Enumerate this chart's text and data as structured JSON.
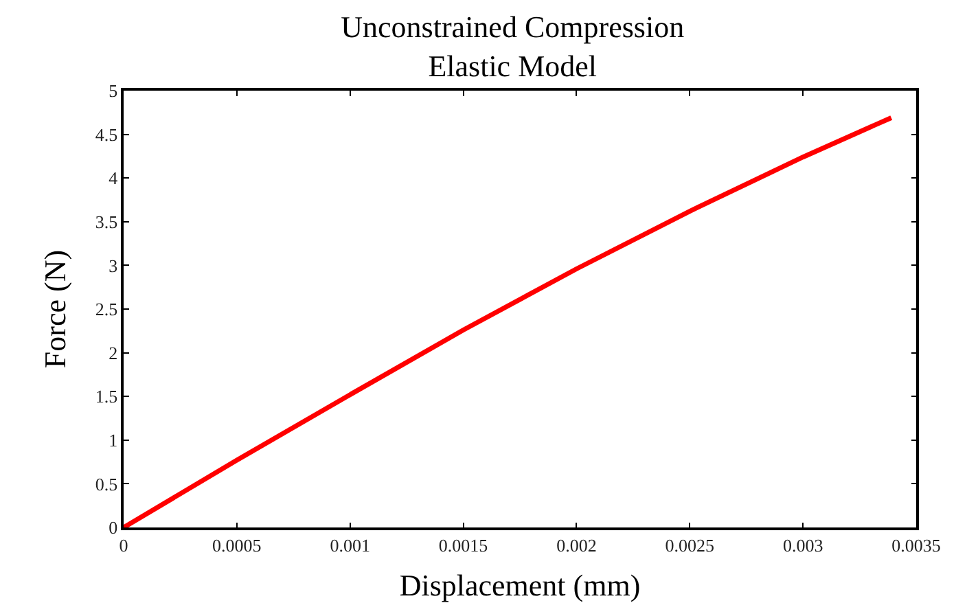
{
  "chart_data": {
    "type": "line",
    "title": "Unconstrained Compression\nElastic Model",
    "xlabel": "Displacement (mm)",
    "ylabel": "Force (N)",
    "x": [
      0,
      0.0005,
      0.001,
      0.0015,
      0.002,
      0.0025,
      0.003,
      0.00339
    ],
    "series": [
      {
        "color": "#ff0000",
        "values": [
          0,
          0.77,
          1.52,
          2.26,
          2.96,
          3.62,
          4.24,
          4.69
        ]
      }
    ],
    "xlim": [
      0,
      0.0035
    ],
    "xticks": [
      0,
      0.0005,
      0.001,
      0.0015,
      0.002,
      0.0025,
      0.003,
      0.0035
    ],
    "ylim": [
      0,
      5
    ],
    "yticks": [
      0,
      0.5,
      1,
      1.5,
      2,
      2.5,
      3,
      3.5,
      4,
      4.5,
      5
    ],
    "marker": "none",
    "line_style": "solid"
  }
}
